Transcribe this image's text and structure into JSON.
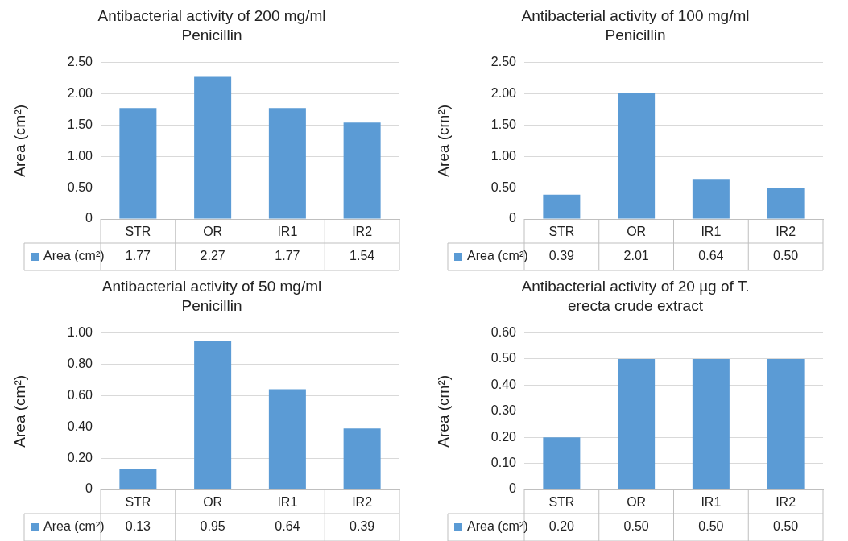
{
  "chart_data": [
    {
      "type": "bar",
      "title": "Antibacterial activity of 200 mg/ml Penicillin",
      "ylabel": "Area (cm²)",
      "categories": [
        "STR",
        "OR",
        "IR1",
        "IR2"
      ],
      "series": [
        {
          "name": "Area (cm²)",
          "color": "#5b9bd5",
          "values": [
            1.77,
            2.27,
            1.77,
            1.54
          ],
          "value_labels": [
            "1.77",
            "2.27",
            "1.77",
            "1.54"
          ]
        }
      ],
      "ylim": [
        0,
        2.5
      ],
      "yticks": [
        {
          "value": 0,
          "label": "0"
        },
        {
          "value": 0.5,
          "label": "0.50"
        },
        {
          "value": 1,
          "label": "1.00"
        },
        {
          "value": 1.5,
          "label": "1.50"
        },
        {
          "value": 2,
          "label": "2.00"
        },
        {
          "value": 2.5,
          "label": "2.50"
        }
      ],
      "grid": "y",
      "legend": "bottom"
    },
    {
      "type": "bar",
      "title": "Antibacterial activity of 100 mg/ml Penicillin",
      "ylabel": "Area (cm²)",
      "categories": [
        "STR",
        "OR",
        "IR1",
        "IR2"
      ],
      "series": [
        {
          "name": "Area (cm²)",
          "color": "#5b9bd5",
          "values": [
            0.39,
            2.01,
            0.64,
            0.5
          ],
          "value_labels": [
            "0.39",
            "2.01",
            "0.64",
            "0.50"
          ]
        }
      ],
      "ylim": [
        0,
        2.5
      ],
      "yticks": [
        {
          "value": 0,
          "label": "0"
        },
        {
          "value": 0.5,
          "label": "0.50"
        },
        {
          "value": 1,
          "label": "1.00"
        },
        {
          "value": 1.5,
          "label": "1.50"
        },
        {
          "value": 2,
          "label": "2.00"
        },
        {
          "value": 2.5,
          "label": "2.50"
        }
      ],
      "grid": "y",
      "legend": "bottom"
    },
    {
      "type": "bar",
      "title": "Antibacterial activity of 50 mg/ml Penicillin",
      "ylabel": "Area (cm²)",
      "categories": [
        "STR",
        "OR",
        "IR1",
        "IR2"
      ],
      "series": [
        {
          "name": "Area (cm²)",
          "color": "#5b9bd5",
          "values": [
            0.13,
            0.95,
            0.64,
            0.39
          ],
          "value_labels": [
            "0.13",
            "0.95",
            "0.64",
            "0.39"
          ]
        }
      ],
      "ylim": [
        0,
        1
      ],
      "yticks": [
        {
          "value": 0,
          "label": "0"
        },
        {
          "value": 0.2,
          "label": "0.20"
        },
        {
          "value": 0.4,
          "label": "0.40"
        },
        {
          "value": 0.6,
          "label": "0.60"
        },
        {
          "value": 0.8,
          "label": "0.80"
        },
        {
          "value": 1,
          "label": "1.00"
        }
      ],
      "grid": "y",
      "legend": "bottom"
    },
    {
      "type": "bar",
      "title": "Antibacterial activity of 20 µg of T. erecta crude extract",
      "ylabel": "Area (cm²)",
      "categories": [
        "STR",
        "OR",
        "IR1",
        "IR2"
      ],
      "series": [
        {
          "name": "Area (cm²)",
          "color": "#5b9bd5",
          "values": [
            0.2,
            0.5,
            0.5,
            0.5
          ],
          "value_labels": [
            "0.20",
            "0.50",
            "0.50",
            "0.50"
          ]
        }
      ],
      "ylim": [
        0,
        0.6
      ],
      "yticks": [
        {
          "value": 0,
          "label": "0"
        },
        {
          "value": 0.1,
          "label": "0.10"
        },
        {
          "value": 0.2,
          "label": "0.20"
        },
        {
          "value": 0.3,
          "label": "0.30"
        },
        {
          "value": 0.4,
          "label": "0.40"
        },
        {
          "value": 0.5,
          "label": "0.50"
        },
        {
          "value": 0.6,
          "label": "0.60"
        }
      ],
      "grid": "y",
      "legend": "bottom"
    }
  ]
}
